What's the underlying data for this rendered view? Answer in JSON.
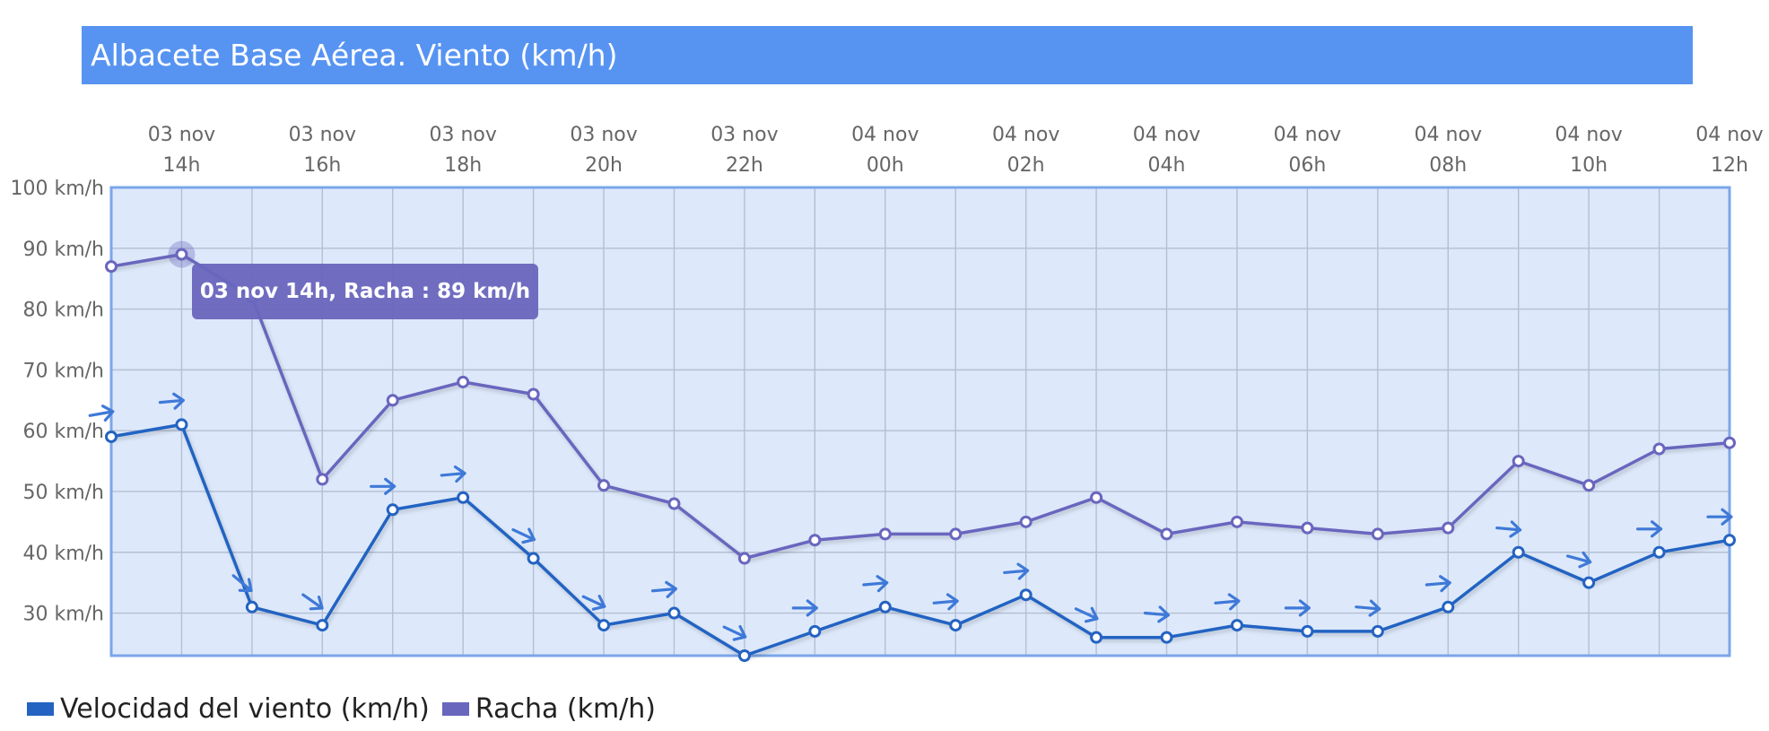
{
  "title": "Albacete Base Aérea. Viento (km/h)",
  "tooltip": {
    "text": "03 nov 14h, Racha : 89 km/h"
  },
  "legend": [
    {
      "label": "Velocidad del viento (km/h)",
      "color": "#2463c2"
    },
    {
      "label": "Racha (km/h)",
      "color": "#6966be"
    }
  ],
  "colors": {
    "plot_bg": "#dde9fb",
    "plot_border": "#7ba6e8",
    "wind": "#2463c2",
    "gust": "#6966be",
    "arrow": "#3f79d8"
  },
  "chart_data": {
    "type": "line",
    "title": "Albacete Base Aérea. Viento (km/h)",
    "ylabel": "",
    "xlabel": "",
    "ylim": [
      23,
      100
    ],
    "yticks": [
      {
        "value": 100,
        "label": "100 km/h"
      },
      {
        "value": 90,
        "label": "90 km/h"
      },
      {
        "value": 80,
        "label": "80 km/h"
      },
      {
        "value": 70,
        "label": "70 km/h"
      },
      {
        "value": 60,
        "label": "60 km/h"
      },
      {
        "value": 50,
        "label": "50 km/h"
      },
      {
        "value": 40,
        "label": "40 km/h"
      },
      {
        "value": 30,
        "label": "30 km/h"
      }
    ],
    "xtick_labels": [
      {
        "line1": "03 nov",
        "line2": "14h",
        "index": 1
      },
      {
        "line1": "03 nov",
        "line2": "16h",
        "index": 3
      },
      {
        "line1": "03 nov",
        "line2": "18h",
        "index": 5
      },
      {
        "line1": "03 nov",
        "line2": "20h",
        "index": 7
      },
      {
        "line1": "03 nov",
        "line2": "22h",
        "index": 9
      },
      {
        "line1": "04 nov",
        "line2": "00h",
        "index": 11
      },
      {
        "line1": "04 nov",
        "line2": "02h",
        "index": 13
      },
      {
        "line1": "04 nov",
        "line2": "04h",
        "index": 15
      },
      {
        "line1": "04 nov",
        "line2": "06h",
        "index": 17
      },
      {
        "line1": "04 nov",
        "line2": "08h",
        "index": 19
      },
      {
        "line1": "04 nov",
        "line2": "10h",
        "index": 21
      },
      {
        "line1": "04 nov",
        "line2": "12h",
        "index": 23
      }
    ],
    "categories": [
      "03 nov 13h",
      "03 nov 14h",
      "03 nov 15h",
      "03 nov 16h",
      "03 nov 17h",
      "03 nov 18h",
      "03 nov 19h",
      "03 nov 20h",
      "03 nov 21h",
      "03 nov 22h",
      "03 nov 23h",
      "04 nov 00h",
      "04 nov 01h",
      "04 nov 02h",
      "04 nov 03h",
      "04 nov 04h",
      "04 nov 05h",
      "04 nov 06h",
      "04 nov 07h",
      "04 nov 08h",
      "04 nov 09h",
      "04 nov 10h",
      "04 nov 11h",
      "04 nov 12h"
    ],
    "series": [
      {
        "name": "Velocidad del viento (km/h)",
        "values": [
          59,
          61,
          31,
          28,
          47,
          49,
          39,
          28,
          30,
          23,
          27,
          31,
          28,
          33,
          26,
          26,
          28,
          27,
          27,
          31,
          40,
          35,
          40,
          42
        ],
        "direction_deg": [
          80,
          85,
          130,
          125,
          90,
          85,
          115,
          115,
          85,
          115,
          90,
          85,
          85,
          85,
          115,
          95,
          85,
          90,
          95,
          85,
          95,
          105,
          90,
          90
        ]
      },
      {
        "name": "Racha (km/h)",
        "values": [
          87,
          89,
          82,
          52,
          65,
          68,
          66,
          51,
          48,
          39,
          42,
          43,
          43,
          45,
          49,
          43,
          45,
          44,
          43,
          44,
          55,
          51,
          57,
          58
        ]
      }
    ],
    "legend_position": "bottom-left",
    "grid": true
  }
}
